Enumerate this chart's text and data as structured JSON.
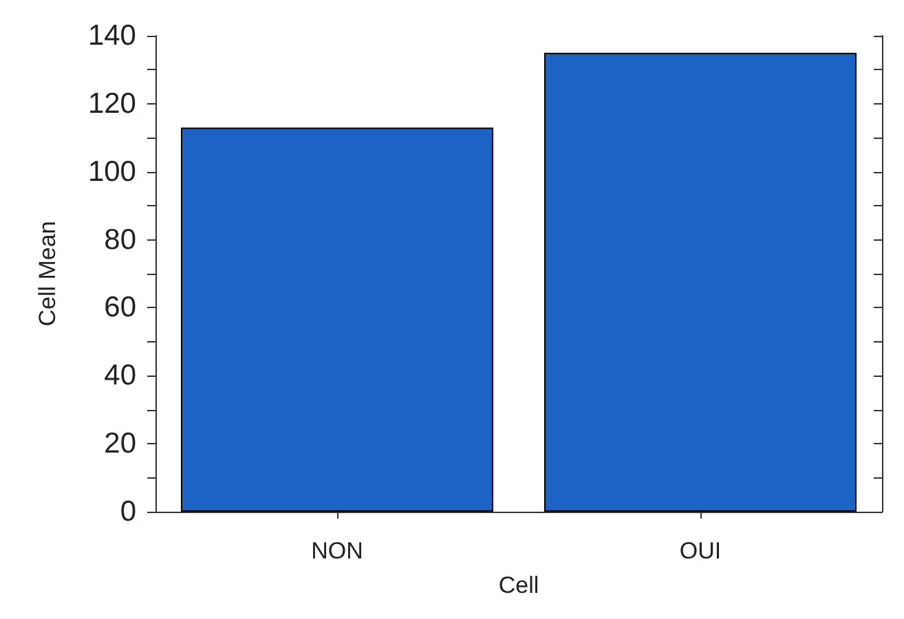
{
  "chart_data": {
    "type": "bar",
    "xlabel": "Cell",
    "ylabel": "Cell Mean",
    "categories": [
      "NON",
      "OUI"
    ],
    "values": [
      113,
      135
    ],
    "color": "#1d63c6",
    "ylim": [
      0,
      140
    ],
    "yticks": [
      0,
      {
        "value": 10,
        "label": null
      },
      20,
      {
        "value": 30,
        "label": null
      },
      40,
      {
        "value": 50,
        "label": null
      },
      60,
      {
        "value": 70,
        "label": null
      },
      80,
      {
        "value": 90,
        "label": null
      },
      100,
      {
        "value": 110,
        "label": null
      },
      120,
      {
        "value": 130,
        "label": null
      },
      140
    ],
    "grid": false
  }
}
